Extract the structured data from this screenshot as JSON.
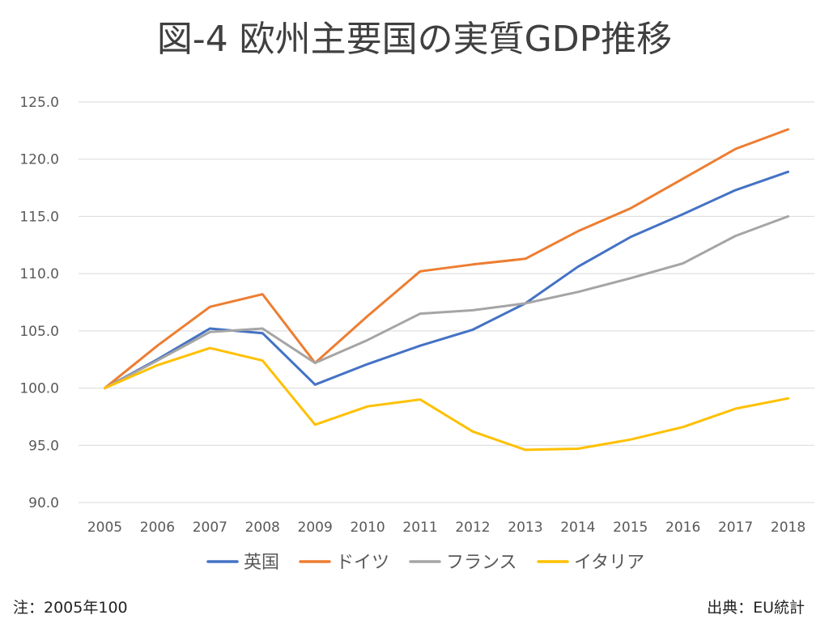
{
  "chart_data": {
    "type": "line",
    "title": "図-4 欧州主要国の実質GDP推移",
    "x": [
      "2005",
      "2006",
      "2007",
      "2008",
      "2009",
      "2010",
      "2011",
      "2012",
      "2013",
      "2014",
      "2015",
      "2016",
      "2017",
      "2018"
    ],
    "yticks": [
      "125.0",
      "120.0",
      "115.0",
      "110.0",
      "105.0",
      "100.0",
      "95.0",
      "90.0"
    ],
    "ylim": [
      90,
      125
    ],
    "grid": true,
    "legend_position": "bottom",
    "series": [
      {
        "name": "英国",
        "color": "#4472C4",
        "values": [
          100.0,
          102.5,
          105.2,
          104.8,
          100.3,
          102.1,
          103.7,
          105.1,
          107.4,
          110.6,
          113.2,
          115.2,
          117.3,
          118.9
        ]
      },
      {
        "name": "ドイツ",
        "color": "#ED7D31",
        "values": [
          100.0,
          103.7,
          107.1,
          108.2,
          102.2,
          106.3,
          110.2,
          110.8,
          111.3,
          113.7,
          115.7,
          118.3,
          120.9,
          122.6
        ]
      },
      {
        "name": "フランス",
        "color": "#A5A5A5",
        "values": [
          100.0,
          102.4,
          104.9,
          105.2,
          102.2,
          104.2,
          106.5,
          106.8,
          107.4,
          108.4,
          109.6,
          110.9,
          113.3,
          115.0
        ]
      },
      {
        "name": "イタリア",
        "color": "#FFC000",
        "values": [
          100.0,
          102.0,
          103.5,
          102.4,
          96.8,
          98.4,
          99.0,
          96.2,
          94.6,
          94.7,
          95.5,
          96.6,
          98.2,
          99.1
        ]
      }
    ]
  },
  "footnote_left": "注：2005年100",
  "footnote_right": "出典：EU統計"
}
